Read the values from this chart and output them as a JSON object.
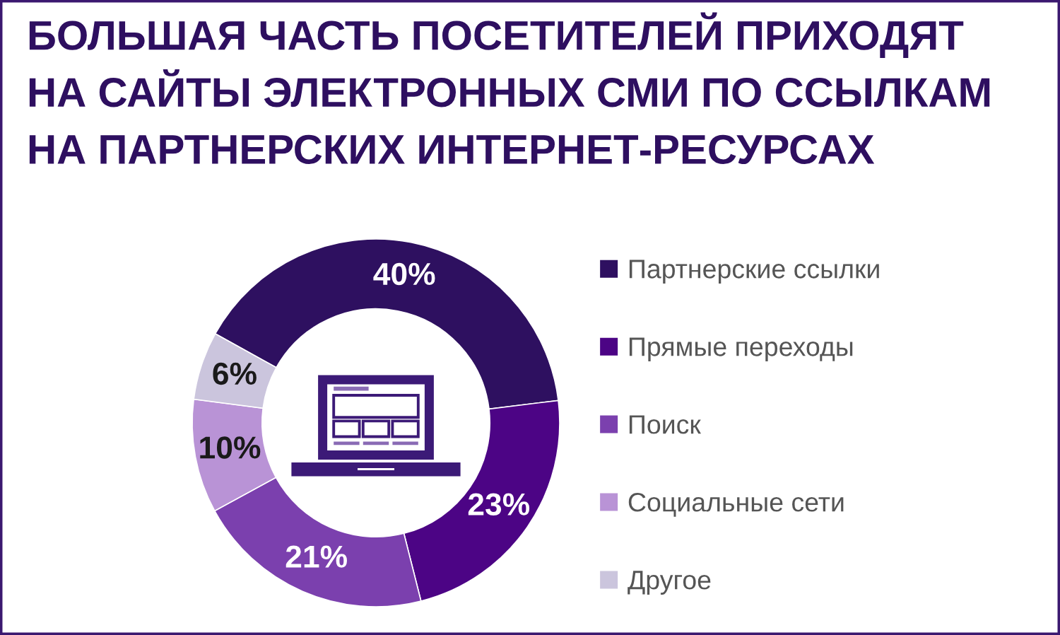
{
  "chart_data": {
    "type": "donut",
    "title": "БОЛЬШАЯ ЧАСТЬ ПОСЕТИТЕЛЕЙ ПРИХОДЯТ\nНА САЙТЫ ЭЛЕКТРОННЫХ СМИ ПО ССЫЛКАМ\nНА ПАРТНЕРСКИХ ИНТЕРНЕТ-РЕСУРСАХ",
    "categories": [
      "Партнерские ссылки",
      "Прямые переходы",
      "Поиск",
      "Социальные сети",
      "Другое"
    ],
    "values": [
      40,
      23,
      21,
      10,
      6
    ],
    "colors": [
      "#2e1060",
      "#4c0485",
      "#7b40ae",
      "#b993d6",
      "#cbc5dd"
    ],
    "value_labels": [
      "40%",
      "23%",
      "21%",
      "10%",
      "6%"
    ],
    "legend": "right"
  }
}
